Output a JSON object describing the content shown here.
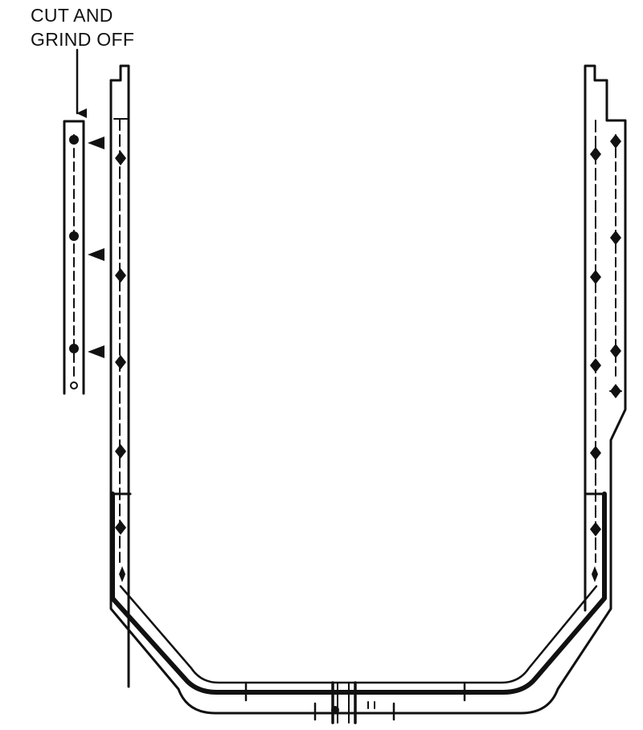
{
  "callout": {
    "lines": [
      "CUT AND",
      "GRIND OFF"
    ]
  },
  "colors": {
    "ink": "#111111",
    "background": "#ffffff"
  }
}
